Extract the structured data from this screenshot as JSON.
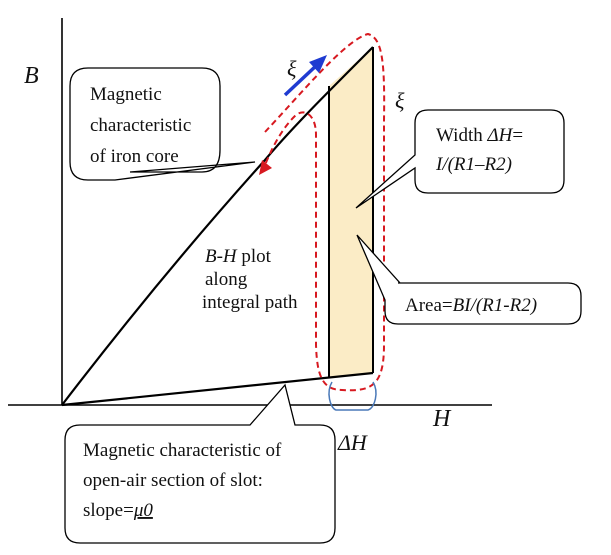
{
  "axes": {
    "x_label": "H",
    "y_label": "B"
  },
  "symbols": {
    "xi_upper": "ξ",
    "xi_right": "ξ"
  },
  "callouts": {
    "iron_core": [
      "Magnetic",
      "characteristic",
      "of iron core"
    ],
    "width": {
      "line1_prefix": "Width ",
      "line1_var": "ΔH",
      "line1_suffix": "=",
      "line2": "I/(R1–R2)"
    },
    "area": {
      "prefix": "Area=",
      "formula": "BI/(R1-R2)"
    },
    "open_air": {
      "line1": "Magnetic characteristic of",
      "line2": "open-air section of slot:",
      "line3_prefix": "slope=",
      "line3_mu": "μ0"
    }
  },
  "labels": {
    "bh_plot": {
      "var": "B-H",
      "suffix": " plot",
      "line2": "along",
      "line3": "integral path"
    },
    "delta_h": "ΔH"
  },
  "colors": {
    "curve": "#000000",
    "loop_dash": "#d71920",
    "arrow_blue": "#1f3bd1",
    "area_fill": "#fbecc6",
    "bracket": "#4a79b8"
  }
}
